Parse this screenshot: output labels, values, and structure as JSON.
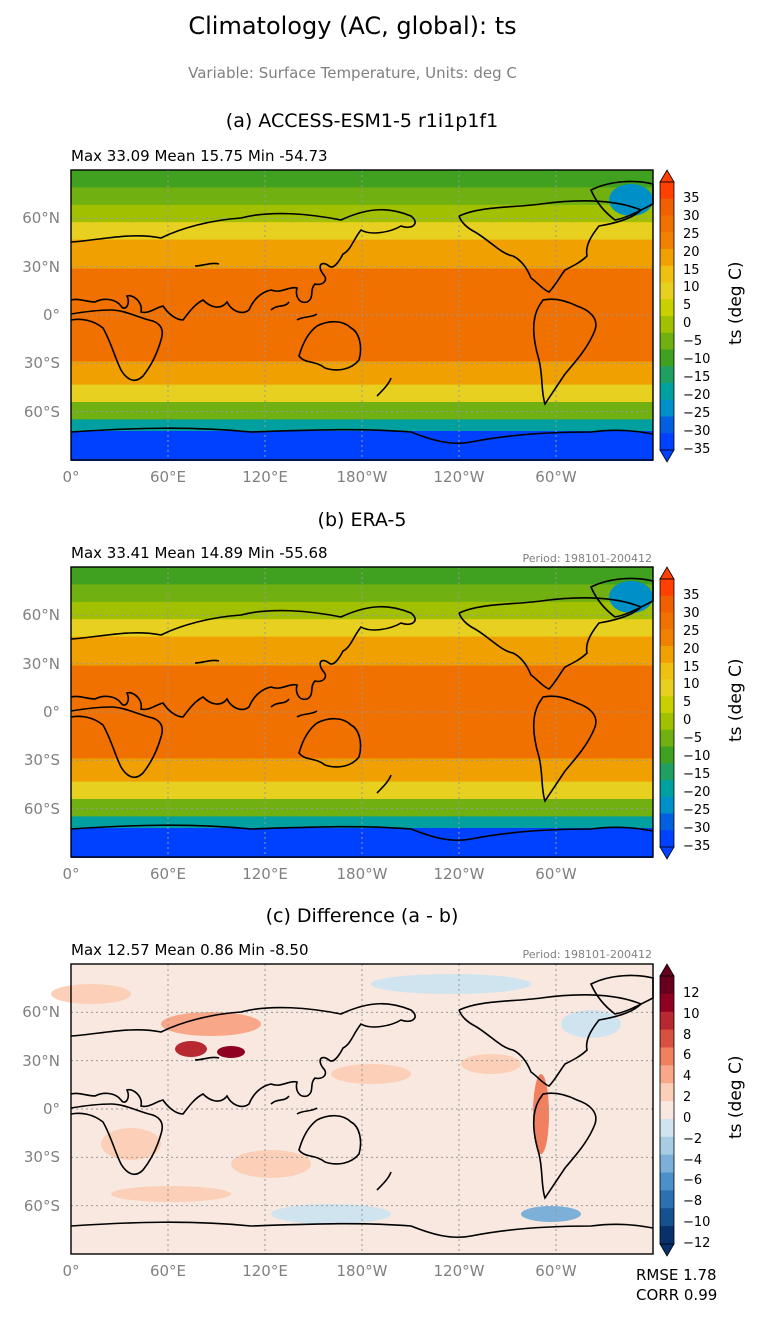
{
  "header": {
    "title": "Climatology (AC, global): ts",
    "subtitle": "Variable: Surface Temperature, Units: deg C"
  },
  "panels": [
    {
      "title": "(a) ACCESS-ESM1-5 r1i1p1f1",
      "stats": "Max 33.09 Mean 15.75 Min -54.73",
      "period": "",
      "colorbar": {
        "label": "ts (deg C)",
        "ticks": [
          "35",
          "30",
          "25",
          "20",
          "15",
          "10",
          "5",
          "0",
          "−5",
          "−10",
          "−15",
          "−20",
          "−25",
          "−30",
          "−35"
        ],
        "colors": [
          "#0040ff",
          "#0060e0",
          "#0090c8",
          "#00a0a0",
          "#20a060",
          "#40a020",
          "#70b010",
          "#a0c000",
          "#c8d000",
          "#e8d020",
          "#f0c010",
          "#f0a000",
          "#f08000",
          "#f07000",
          "#f06000",
          "#ff4000"
        ]
      }
    },
    {
      "title": "(b) ERA-5",
      "stats": "Max 33.41 Mean 14.89 Min -55.68",
      "period": "Period: 198101-200412",
      "colorbar": {
        "label": "ts (deg C)",
        "ticks": [
          "35",
          "30",
          "25",
          "20",
          "15",
          "10",
          "5",
          "0",
          "−5",
          "−10",
          "−15",
          "−20",
          "−25",
          "−30",
          "−35"
        ],
        "colors": [
          "#0040ff",
          "#0060e0",
          "#0090c8",
          "#00a0a0",
          "#20a060",
          "#40a020",
          "#70b010",
          "#a0c000",
          "#c8d000",
          "#e8d020",
          "#f0c010",
          "#f0a000",
          "#f08000",
          "#f07000",
          "#f06000",
          "#ff4000"
        ]
      }
    },
    {
      "title": "(c) Difference (a - b)",
      "stats": "Max 12.57 Mean 0.86 Min -8.50",
      "period": "Period: 198101-200412",
      "colorbar": {
        "label": "ts (deg C)",
        "ticks": [
          "12",
          "10",
          "8",
          "6",
          "4",
          "2",
          "0",
          "−2",
          "−4",
          "−6",
          "−8",
          "−10",
          "−12"
        ],
        "colors": [
          "#08306b",
          "#15508f",
          "#2c70b0",
          "#4b90c8",
          "#7cb0d8",
          "#a8cce4",
          "#d0e4f0",
          "#f8e8e0",
          "#fcd0b8",
          "#f8a888",
          "#f08060",
          "#d85040",
          "#b82830",
          "#900020",
          "#67001f"
        ]
      }
    }
  ],
  "axes": {
    "lat_labels": [
      "60°N",
      "30°N",
      "0°",
      "30°S",
      "60°S"
    ],
    "lon_labels": [
      "0°",
      "60°E",
      "120°E",
      "180°W",
      "120°W",
      "60°W"
    ]
  },
  "metrics": {
    "rmse": "RMSE 1.78",
    "corr": "CORR 0.99"
  }
}
